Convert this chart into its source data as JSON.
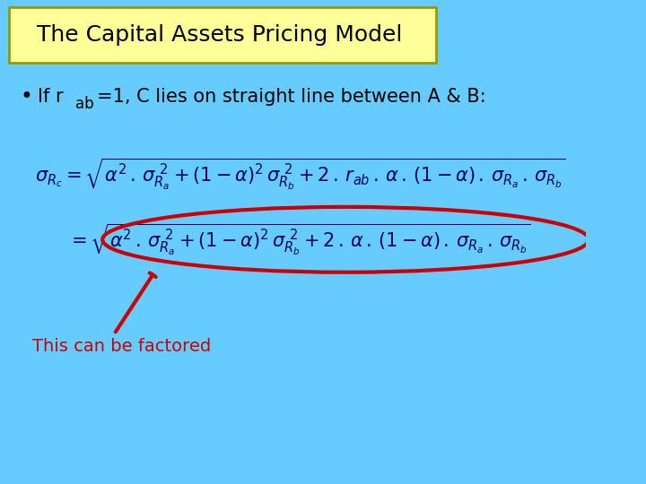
{
  "title": "The Capital Assets Pricing Model",
  "title_bg": "#FFFF99",
  "title_border": "#999900",
  "background_color": "#66CCFF",
  "bullet_pre": "If r",
  "bullet_sub": "ab",
  "bullet_post": "=1, C lies on straight line between A & B:",
  "annotation": "This can be factored",
  "ellipse_color": "#CC0000",
  "arrow_color": "#CC0000",
  "text_color": "#000066",
  "annotation_color": "#CC0000",
  "title_fontsize": 18,
  "bullet_fontsize": 15,
  "formula_fontsize": 15,
  "annotation_fontsize": 14
}
